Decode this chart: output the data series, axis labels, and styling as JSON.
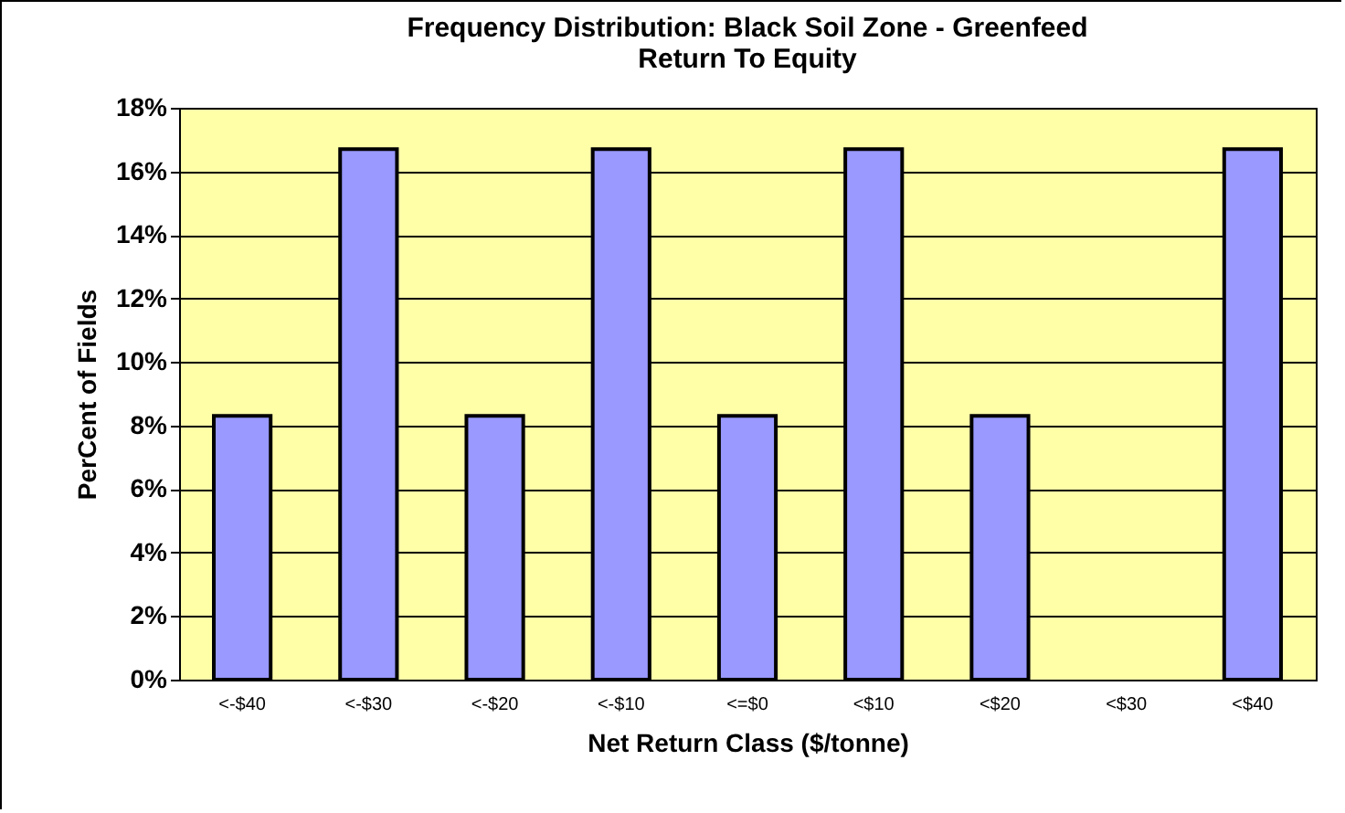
{
  "chart_data": {
    "type": "bar",
    "title": "Frequency Distribution: Black Soil Zone - Greenfeed Return To Equity",
    "xlabel": "Net Return Class ($/tonne)",
    "ylabel": "PerCent of Fields",
    "categories": [
      "<-$40",
      "<-$30",
      "<-$20",
      "<-$10",
      "<=$0",
      "<$10",
      "<$20",
      "<$30",
      "<$40"
    ],
    "values": [
      8.3,
      16.7,
      8.3,
      16.7,
      8.3,
      16.7,
      8.3,
      0,
      16.7
    ],
    "color": "#9999ff",
    "ylim": [
      0,
      18
    ],
    "yticks": [
      {
        "value": 0,
        "label": "0%"
      },
      {
        "value": 2,
        "label": "2%"
      },
      {
        "value": 4,
        "label": "4%"
      },
      {
        "value": 6,
        "label": "6%"
      },
      {
        "value": 8,
        "label": "8%"
      },
      {
        "value": 10,
        "label": "10%"
      },
      {
        "value": 12,
        "label": "12%"
      },
      {
        "value": 14,
        "label": "14%"
      },
      {
        "value": 16,
        "label": "16%"
      },
      {
        "value": 18,
        "label": "18%"
      }
    ],
    "grid": "y"
  }
}
